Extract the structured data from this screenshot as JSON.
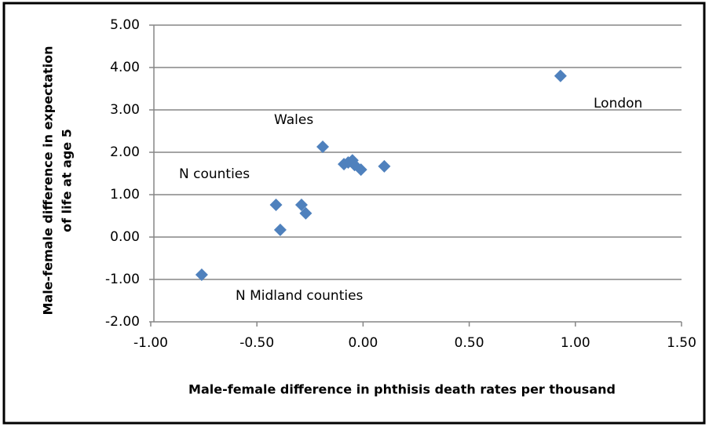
{
  "chart_data": {
    "type": "scatter",
    "xlabel": "Male-female difference in phthisis death rates per thousand",
    "ylabel": [
      "Male-female difference in expectation",
      "of life at age 5"
    ],
    "series": [
      {
        "color": "#4f81bd",
        "x": [
          0.93,
          -0.19,
          -0.09,
          -0.07,
          -0.05,
          -0.04,
          -0.01,
          0.1,
          -0.41,
          -0.29,
          -0.27,
          -0.39,
          -0.76
        ],
        "values": [
          3.8,
          2.13,
          1.72,
          1.76,
          1.81,
          1.7,
          1.59,
          1.67,
          0.76,
          0.76,
          0.56,
          0.17,
          -0.89
        ]
      }
    ],
    "annotations": [
      "London",
      "Wales",
      "N counties",
      "N Midland counties"
    ],
    "xlim": [
      -1.0,
      1.5
    ],
    "xticks": [
      {
        "value": -1.0,
        "label": "-1.00"
      },
      {
        "value": -0.5,
        "label": "-0.50"
      },
      {
        "value": 0,
        "label": "0.00"
      },
      {
        "value": 0.5,
        "label": "0.50"
      },
      {
        "value": 1.0,
        "label": "1.00"
      },
      {
        "value": 1.5,
        "label": "1.50"
      }
    ],
    "ylim": [
      -2.0,
      5.0
    ],
    "yticks": [
      {
        "value": -2.0,
        "label": "-2.00"
      },
      {
        "value": -1.0,
        "label": "-1.00"
      },
      {
        "value": 0,
        "label": "0.00"
      },
      {
        "value": 1.0,
        "label": "1.00"
      },
      {
        "value": 2.0,
        "label": "2.00"
      },
      {
        "value": 3.0,
        "label": "3.00"
      },
      {
        "value": 4.0,
        "label": "4.00"
      },
      {
        "value": 5.0,
        "label": "5.00"
      }
    ],
    "grid": true
  }
}
